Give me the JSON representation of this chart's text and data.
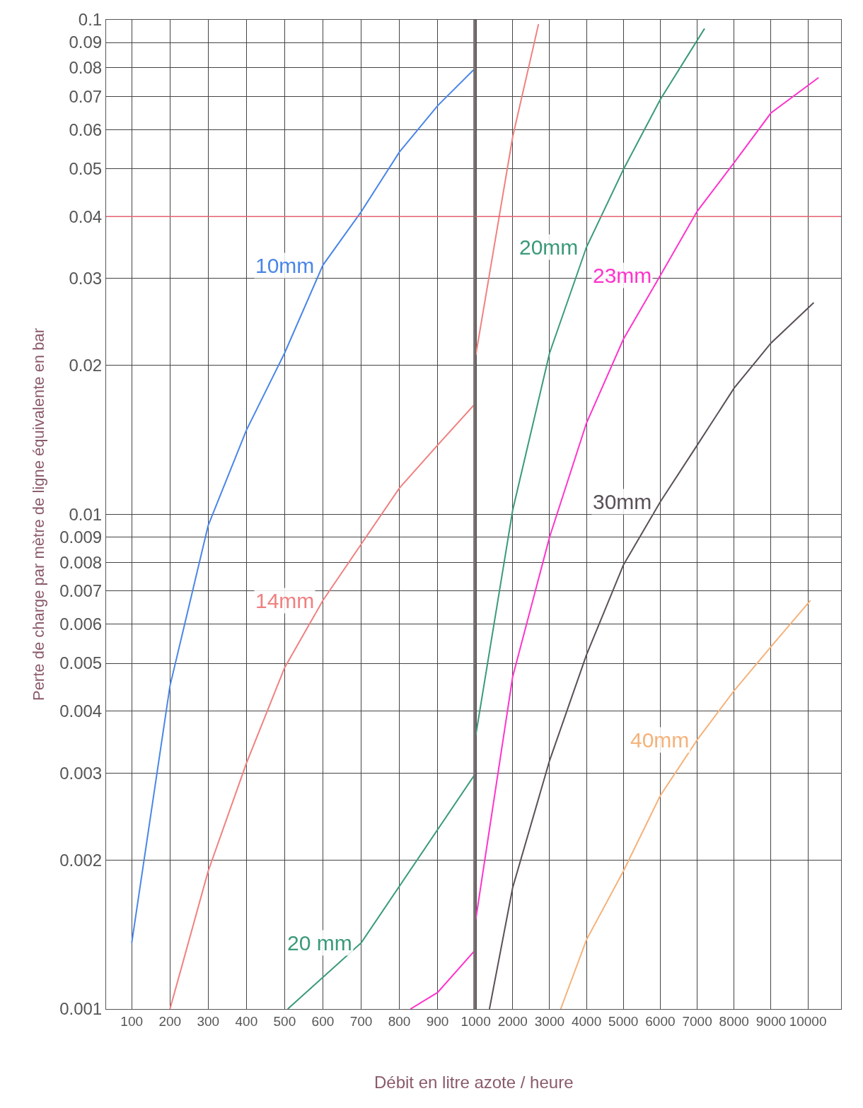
{
  "chart_data": [
    {
      "type": "line",
      "ylabel": "Perte de charge par mètre de ligne équivalente en bar",
      "xlabel": "Débit en litre azote / heure",
      "log": "y",
      "grid": true,
      "marker": "none",
      "line_style": "solid",
      "xlim": [
        33,
        1000
      ],
      "xticks": [
        100,
        200,
        300,
        400,
        500,
        600,
        700,
        800,
        900,
        1000
      ],
      "ylim": [
        0.001,
        0.1
      ],
      "yticks": [
        0.001,
        0.002,
        0.003,
        0.004,
        0.005,
        0.006,
        0.007,
        0.008,
        0.009,
        0.01,
        0.02,
        0.03,
        0.04,
        0.05,
        0.06,
        0.07,
        0.08,
        0.09,
        0.1
      ],
      "series": [
        {
          "name": "10mm",
          "color": "#4a86e8",
          "x": [
            100,
            200,
            300,
            400,
            500,
            600,
            700,
            800,
            900,
            1000
          ],
          "values": [
            0.00136,
            0.0045,
            0.0095,
            0.0148,
            0.0212,
            0.0319,
            0.0409,
            0.054,
            0.067,
            0.08
          ]
        },
        {
          "name": "14mm",
          "color": "#f08080",
          "x": [
            200,
            300,
            400,
            500,
            600,
            700,
            800,
            900,
            1000
          ],
          "values": [
            0.001,
            0.0019,
            0.00314,
            0.0049,
            0.0067,
            0.0087,
            0.0113,
            0.0138,
            0.0168
          ]
        },
        {
          "name": "20 mm",
          "color": "#3a9a7a",
          "x": [
            508,
            700,
            1000
          ],
          "values": [
            0.001,
            0.00136,
            0.003
          ]
        },
        {
          "color": "#ff33cc",
          "x": [
            829,
            900,
            1000
          ],
          "values": [
            0.001,
            0.00108,
            0.00132
          ]
        }
      ],
      "ref_lines": [
        {
          "axis": "y",
          "value": 0.04,
          "color": "#e86070"
        },
        {
          "axis": "x",
          "value": 1000,
          "color": "#7a7070"
        }
      ]
    },
    {
      "type": "line",
      "log": "y",
      "grid": true,
      "marker": "none",
      "line_style": "solid",
      "tick_labels": "x",
      "xlim": [
        1000,
        10900
      ],
      "xticks": [
        2000,
        3000,
        4000,
        5000,
        6000,
        7000,
        8000,
        9000,
        10000
      ],
      "ylim": [
        0.001,
        0.1
      ],
      "series": [
        {
          "color": "#f08080",
          "x": [
            1000,
            2000,
            2700
          ],
          "values": [
            0.021,
            0.058,
            0.098
          ]
        },
        {
          "name": "20mm",
          "color": "#3a9a7a",
          "x": [
            1000,
            2000,
            3000,
            4000,
            5000,
            6000,
            7200
          ],
          "values": [
            0.00358,
            0.0102,
            0.0212,
            0.0347,
            0.0498,
            0.069,
            0.096
          ]
        },
        {
          "name": "23mm",
          "color": "#ff33cc",
          "x": [
            1000,
            2000,
            3000,
            4000,
            5000,
            6000,
            7000,
            8000,
            9000,
            10290
          ],
          "values": [
            0.00152,
            0.0047,
            0.009,
            0.0153,
            0.0226,
            0.0304,
            0.041,
            0.0514,
            0.0648,
            0.0764
          ]
        },
        {
          "name": "30mm",
          "color": "#5a5058",
          "x": [
            1370,
            2000,
            3000,
            4000,
            5000,
            6000,
            7000,
            8000,
            9000,
            10160
          ],
          "values": [
            0.001,
            0.00176,
            0.00318,
            0.0052,
            0.0079,
            0.0106,
            0.0138,
            0.018,
            0.0222,
            0.0268
          ]
        },
        {
          "name": "40mm",
          "color": "#f5b27a",
          "x": [
            3300,
            4000,
            5000,
            6000,
            7000,
            8000,
            9000,
            10070
          ],
          "values": [
            0.001,
            0.00138,
            0.0019,
            0.0027,
            0.0035,
            0.0044,
            0.0054,
            0.0067
          ]
        }
      ],
      "ref_lines": [
        {
          "axis": "y",
          "value": 0.04,
          "color": "#e86070"
        }
      ]
    }
  ]
}
